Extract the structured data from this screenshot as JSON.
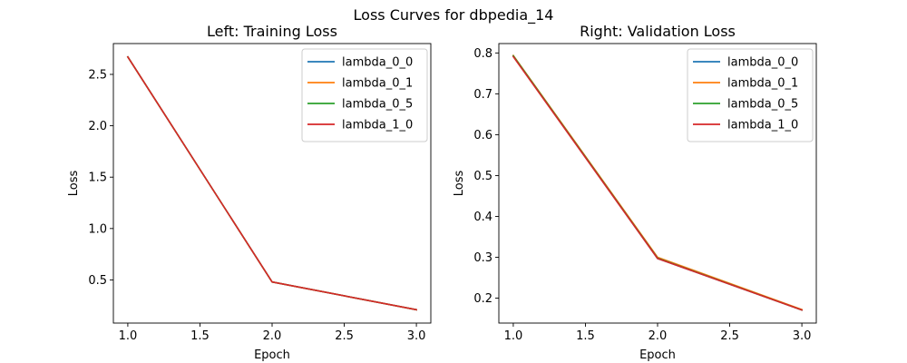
{
  "figure": {
    "suptitle": "Loss Curves for dbpedia_14"
  },
  "chart_data": [
    {
      "type": "line",
      "title": "Left: Training Loss",
      "xlabel": "Epoch",
      "ylabel": "Loss",
      "xlim": [
        0.9,
        3.1
      ],
      "ylim": [
        0.08,
        2.8
      ],
      "xticks": [
        1.0,
        1.5,
        2.0,
        2.5,
        3.0
      ],
      "xtick_labels": [
        "1.0",
        "1.5",
        "2.0",
        "2.5",
        "3.0"
      ],
      "yticks": [
        0.5,
        1.0,
        1.5,
        2.0,
        2.5
      ],
      "ytick_labels": [
        "0.5",
        "1.0",
        "1.5",
        "2.0",
        "2.5"
      ],
      "grid": false,
      "legend": "top-right",
      "x": [
        1,
        2,
        3
      ],
      "series": [
        {
          "name": "lambda_0_0",
          "color": "#1f77b4",
          "values": [
            2.67,
            0.48,
            0.21
          ]
        },
        {
          "name": "lambda_0_1",
          "color": "#ff7f0e",
          "values": [
            2.67,
            0.48,
            0.21
          ]
        },
        {
          "name": "lambda_0_5",
          "color": "#2ca02c",
          "values": [
            2.67,
            0.48,
            0.21
          ]
        },
        {
          "name": "lambda_1_0",
          "color": "#d62728",
          "values": [
            2.67,
            0.48,
            0.21
          ]
        }
      ]
    },
    {
      "type": "line",
      "title": "Right: Validation Loss",
      "xlabel": "Epoch",
      "ylabel": "Loss",
      "xlim": [
        0.9,
        3.1
      ],
      "ylim": [
        0.139,
        0.823
      ],
      "xticks": [
        1.0,
        1.5,
        2.0,
        2.5,
        3.0
      ],
      "xtick_labels": [
        "1.0",
        "1.5",
        "2.0",
        "2.5",
        "3.0"
      ],
      "yticks": [
        0.2,
        0.3,
        0.4,
        0.5,
        0.6,
        0.7,
        0.8
      ],
      "ytick_labels": [
        "0.2",
        "0.3",
        "0.4",
        "0.5",
        "0.6",
        "0.7",
        "0.8"
      ],
      "grid": false,
      "legend": "top-right",
      "x": [
        1,
        2,
        3
      ],
      "series": [
        {
          "name": "lambda_0_0",
          "color": "#1f77b4",
          "values": [
            0.792,
            0.297,
            0.171
          ]
        },
        {
          "name": "lambda_0_1",
          "color": "#ff7f0e",
          "values": [
            0.794,
            0.3,
            0.172
          ]
        },
        {
          "name": "lambda_0_5",
          "color": "#2ca02c",
          "values": [
            0.793,
            0.298,
            0.171
          ]
        },
        {
          "name": "lambda_1_0",
          "color": "#d62728",
          "values": [
            0.791,
            0.297,
            0.171
          ]
        }
      ]
    }
  ]
}
